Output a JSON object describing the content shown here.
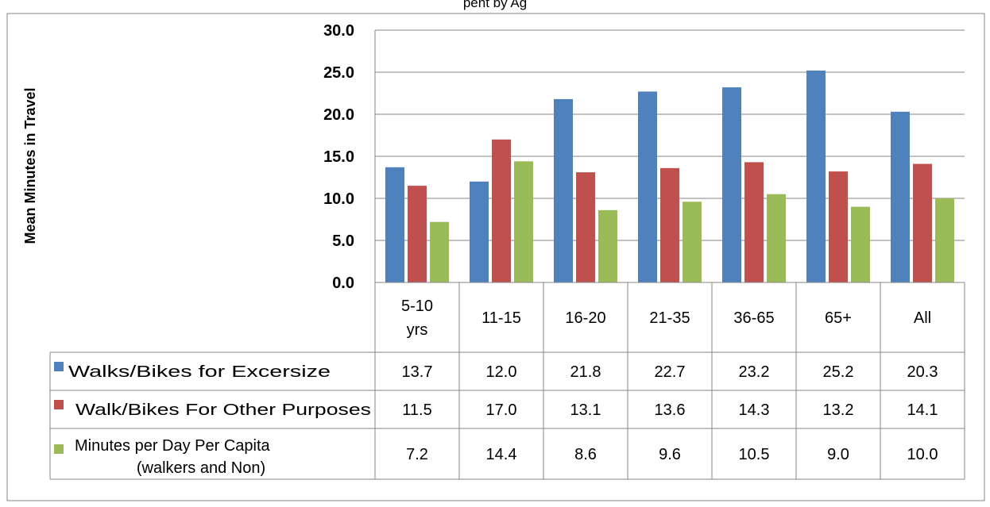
{
  "header": {
    "title_fragment": "pent by Ag"
  },
  "chart_data": {
    "type": "bar",
    "title": "",
    "xlabel": "",
    "ylabel": "Mean Minutes in Travel",
    "ylim": [
      0,
      30
    ],
    "yticks": [
      "0.0",
      "5.0",
      "10.0",
      "15.0",
      "20.0",
      "25.0",
      "30.0"
    ],
    "grid": true,
    "legend": "data-table-left",
    "categories": [
      "5-10 yrs",
      "11-15",
      "16-20",
      "21-35",
      "36-65",
      "65+",
      "All"
    ],
    "category_lines": [
      [
        "5-10",
        "yrs"
      ],
      [
        "11-15"
      ],
      [
        "16-20"
      ],
      [
        "21-35"
      ],
      [
        "36-65"
      ],
      [
        "65+"
      ],
      [
        "All"
      ]
    ],
    "series": [
      {
        "name": "Walks/Bikes for Excersize",
        "color": "#4F81BD",
        "values": [
          13.7,
          12.0,
          21.8,
          22.7,
          23.2,
          25.2,
          20.3
        ],
        "labels": [
          "13.7",
          "12.0",
          "21.8",
          "22.7",
          "23.2",
          "25.2",
          "20.3"
        ]
      },
      {
        "name": "Walk/Bikes For Other Purposes",
        "color": "#C0504D",
        "values": [
          11.5,
          17.0,
          13.1,
          13.6,
          14.3,
          13.2,
          14.1
        ],
        "labels": [
          "11.5",
          "17.0",
          "13.1",
          "13.6",
          "14.3",
          "13.2",
          "14.1"
        ]
      },
      {
        "name": "Minutes per Day Per Capita",
        "name_line2": "(walkers and Non)",
        "color": "#9BBB59",
        "values": [
          7.2,
          14.4,
          8.6,
          9.6,
          10.5,
          9.0,
          10.0
        ],
        "labels": [
          "7.2",
          "14.4",
          "8.6",
          "9.6",
          "10.5",
          "9.0",
          "10.0"
        ]
      }
    ]
  }
}
